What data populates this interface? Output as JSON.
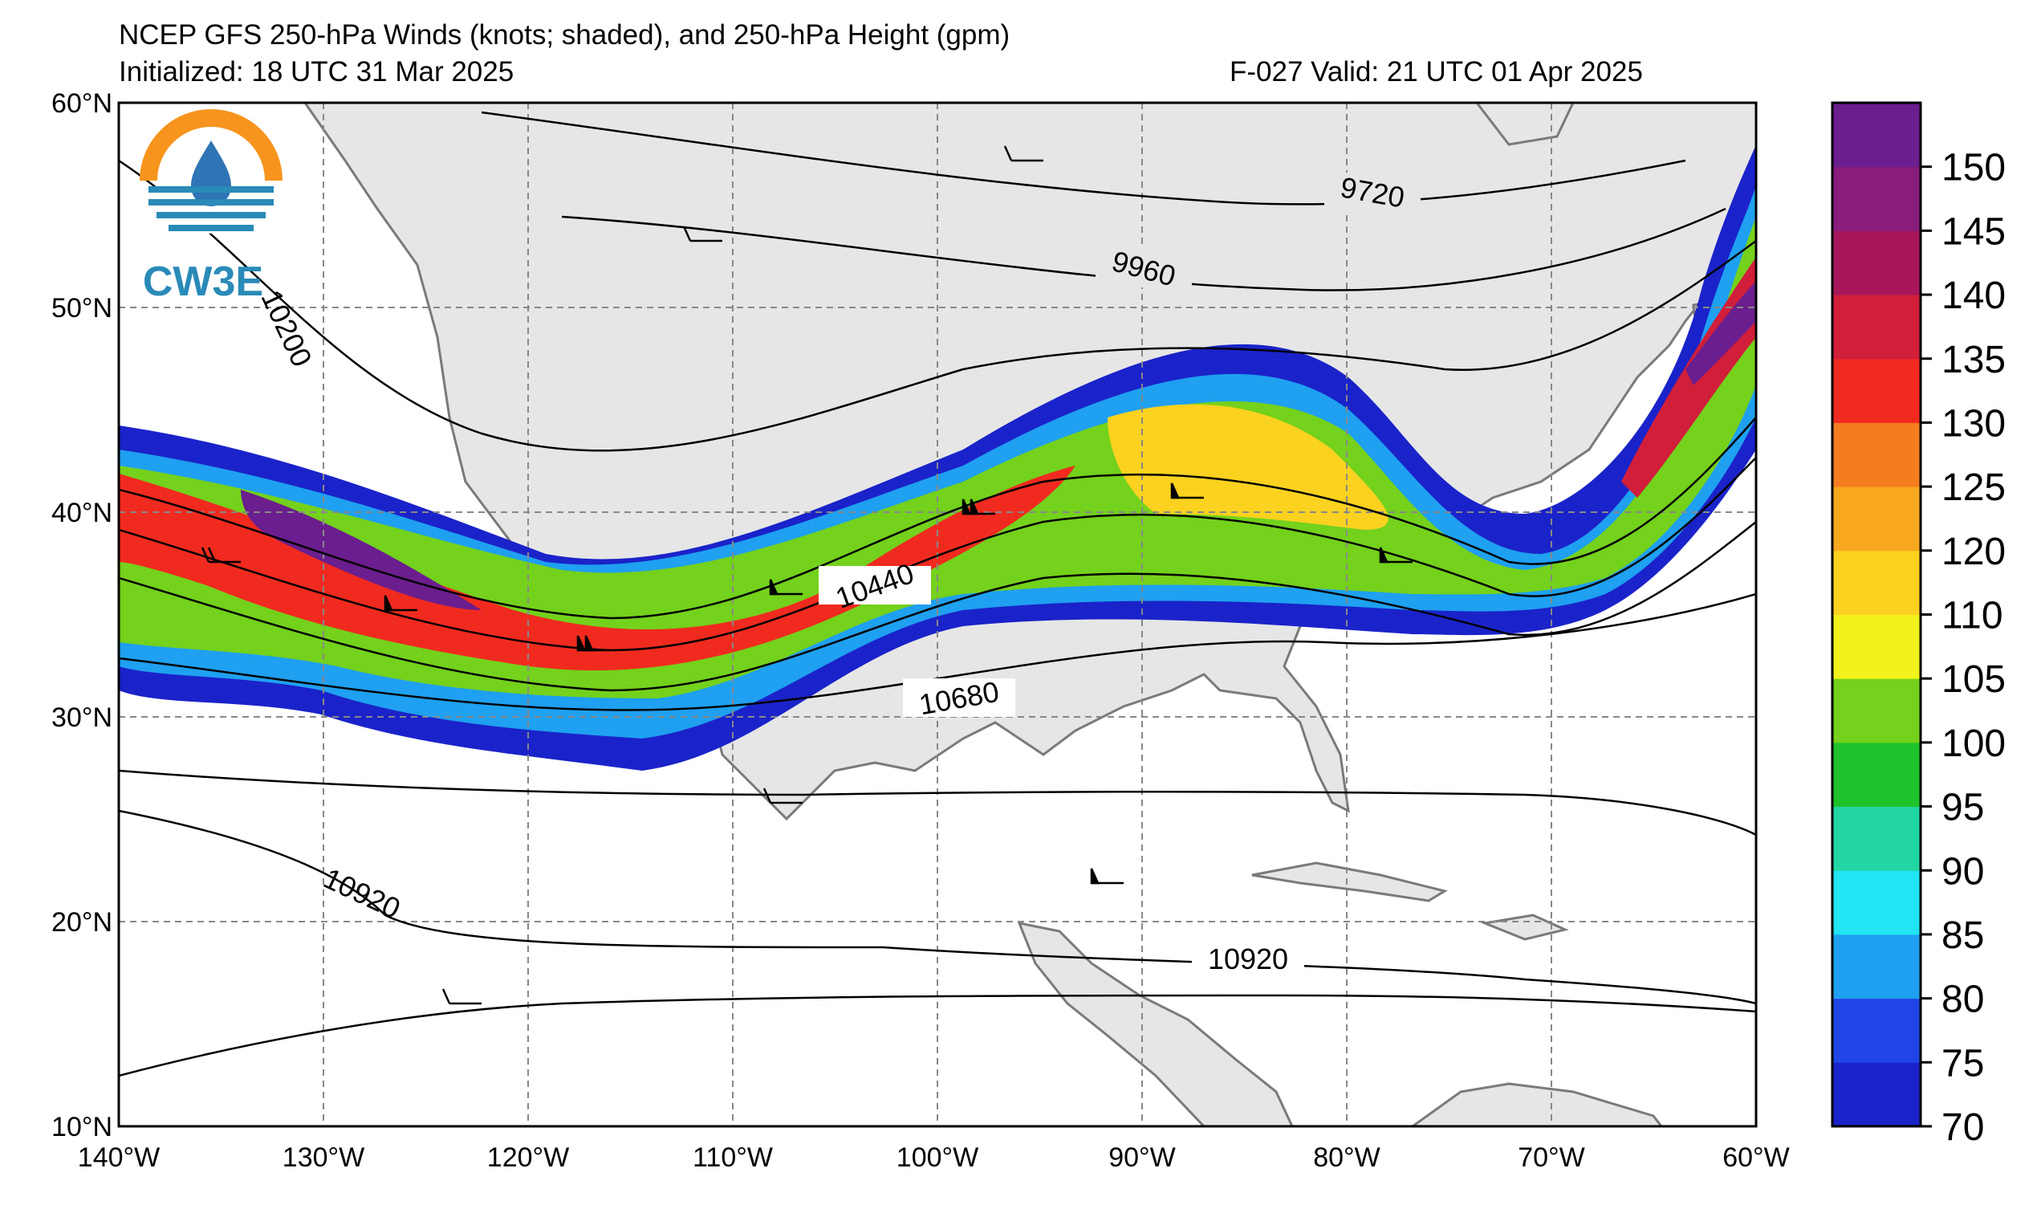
{
  "header": {
    "title": "NCEP GFS 250-hPa Winds (knots; shaded), and 250-hPa Height (gpm)",
    "initialized": "Initialized: 18 UTC 31 Mar 2025",
    "valid": "F-027  Valid: 21 UTC 01 Apr 2025"
  },
  "logo": {
    "text": "CW3E",
    "colors": {
      "orange": "#f7941d",
      "teal": "#2a8ab8",
      "blue": "#2f74b5"
    }
  },
  "map": {
    "lat_labels": [
      "60°N",
      "50°N",
      "40°N",
      "30°N",
      "20°N",
      "10°N"
    ],
    "lon_labels": [
      "140°W",
      "130°W",
      "120°W",
      "110°W",
      "100°W",
      "90°W",
      "80°W",
      "70°W",
      "60°W"
    ],
    "contour_labels": [
      "9720",
      "9960",
      "10200",
      "10440",
      "10680",
      "10920",
      "10920"
    ],
    "colors": {
      "land": "#e6e6e6",
      "coast": "#7a7a7a",
      "grid": "#888888"
    }
  },
  "colorbar": {
    "ticks": [
      "70",
      "75",
      "80",
      "85",
      "90",
      "95",
      "100",
      "105",
      "110",
      "120",
      "125",
      "130",
      "135",
      "140",
      "145",
      "150"
    ],
    "colors": [
      "#1a23c9",
      "#2045e6",
      "#1fa0f0",
      "#22e4f2",
      "#22d6a4",
      "#1fc22b",
      "#74d11c",
      "#f2f21c",
      "#fbd21f",
      "#f8a81e",
      "#f57d1f",
      "#f12a1f",
      "#d11e3a",
      "#a7165a",
      "#8a1c7d",
      "#6b1e8e"
    ]
  }
}
